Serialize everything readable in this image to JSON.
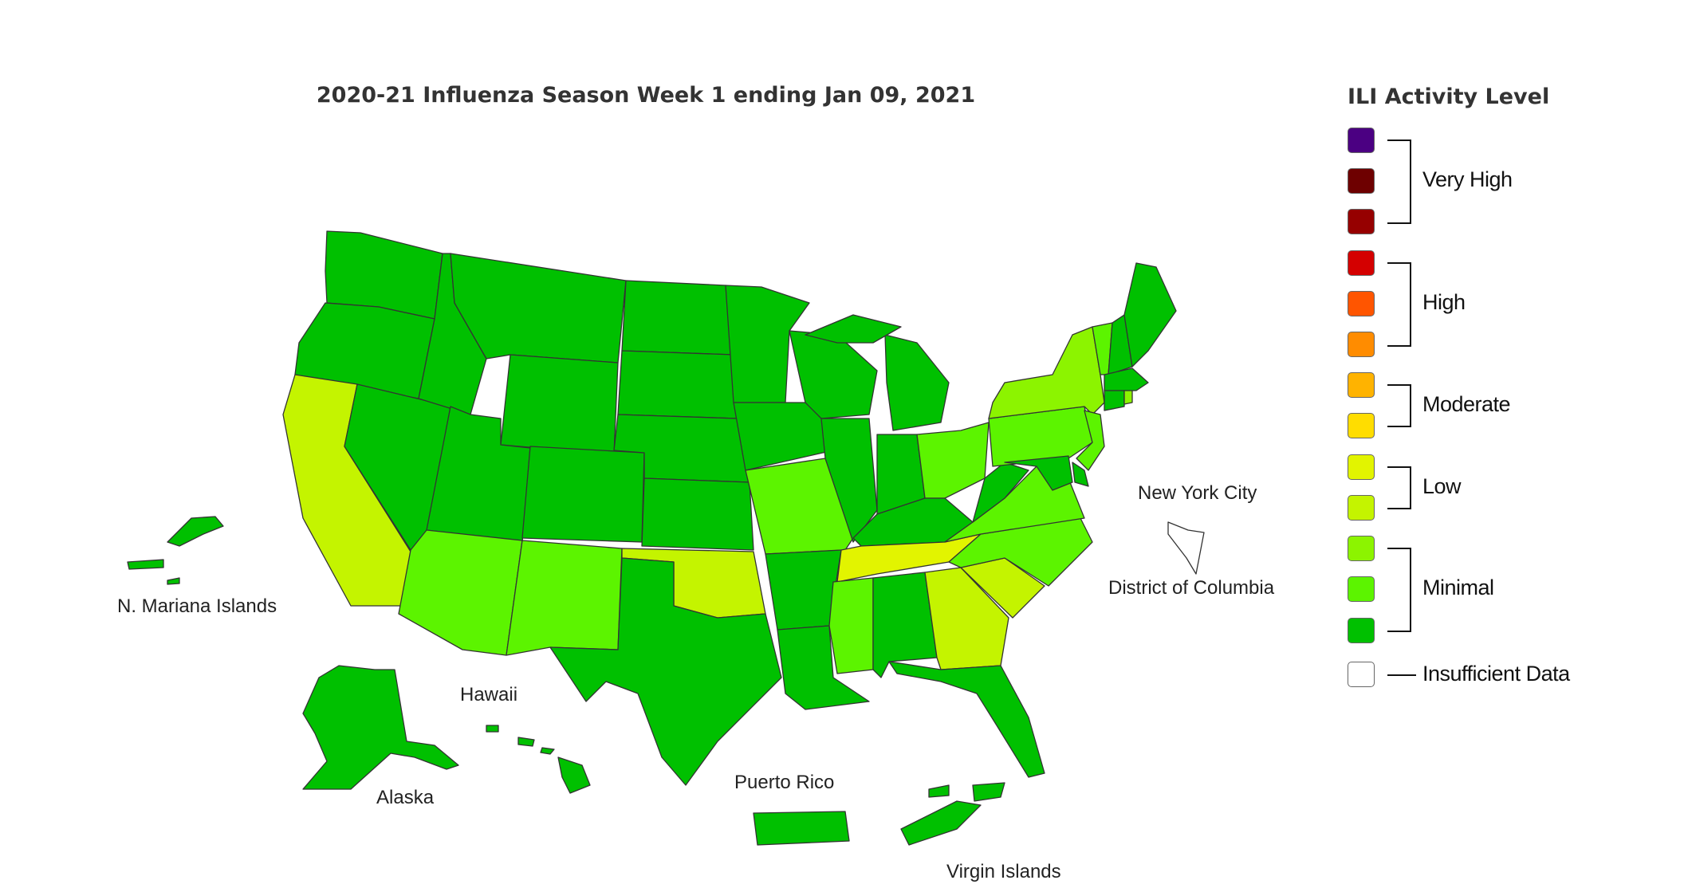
{
  "title": "2020-21 Influenza Season Week 1 ending Jan 09, 2021",
  "legend": {
    "title": "ILI Activity Level",
    "levels": [
      {
        "color": "#4b0082"
      },
      {
        "color": "#6e0000"
      },
      {
        "color": "#960000"
      },
      {
        "color": "#d40000"
      },
      {
        "color": "#ff5500"
      },
      {
        "color": "#ff8c00"
      },
      {
        "color": "#ffb300"
      },
      {
        "color": "#ffdd00"
      },
      {
        "color": "#e2f400"
      },
      {
        "color": "#c4f400"
      },
      {
        "color": "#8cf400"
      },
      {
        "color": "#5cf400"
      },
      {
        "color": "#00c000"
      },
      {
        "color": "#ffffff"
      }
    ],
    "groups": [
      {
        "label": "Very High"
      },
      {
        "label": "High"
      },
      {
        "label": "Moderate"
      },
      {
        "label": "Low"
      },
      {
        "label": "Minimal"
      },
      {
        "label": "Insufficient Data"
      }
    ]
  },
  "territories": {
    "nyc": "New York City",
    "dc": "District of Columbia",
    "mariana": "N. Mariana Islands",
    "hawaii": "Hawaii",
    "alaska": "Alaska",
    "puerto_rico": "Puerto Rico",
    "virgin_islands": "Virgin Islands"
  },
  "state_levels": {
    "Washington": 1,
    "Oregon": 1,
    "California": 4,
    "Nevada": 1,
    "Idaho": 1,
    "Montana": 1,
    "Wyoming": 1,
    "Utah": 1,
    "Arizona": 2,
    "Colorado": 1,
    "New Mexico": 2,
    "North Dakota": 1,
    "South Dakota": 1,
    "Nebraska": 1,
    "Kansas": 1,
    "Oklahoma": 4,
    "Texas": 1,
    "Minnesota": 1,
    "Iowa": 1,
    "Missouri": 2,
    "Arkansas": 1,
    "Louisiana": 1,
    "Wisconsin": 1,
    "Illinois": 1,
    "Michigan": 1,
    "Indiana": 1,
    "Ohio": 2,
    "Kentucky": 1,
    "Tennessee": 5,
    "Mississippi": 2,
    "Alabama": 1,
    "Georgia": 4,
    "Florida": 1,
    "South Carolina": 4,
    "North Carolina": 2,
    "Virginia": 2,
    "West Virginia": 1,
    "Pennsylvania": 2,
    "New York": 3,
    "Vermont": 2,
    "New Hampshire": 1,
    "Maine": 1,
    "Massachusetts": 1,
    "Connecticut": 1,
    "Rhode Island": 3,
    "New Jersey": 2,
    "Delaware": 1,
    "Maryland": 1,
    "Alaska": 1,
    "Hawaii": 1,
    "Puerto Rico": 1,
    "Virgin Islands": 1,
    "N. Mariana Islands": 1,
    "New York City": 0,
    "District of Columbia": 0
  }
}
